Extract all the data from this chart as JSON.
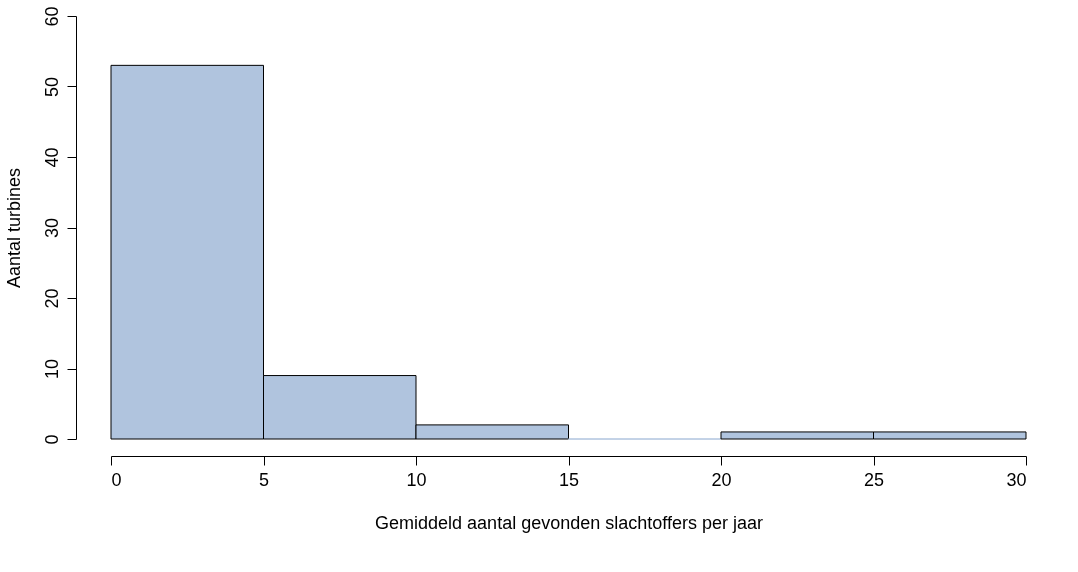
{
  "chart_data": {
    "type": "histogram",
    "xlabel": "Gemiddeld aantal gevonden slachtoffers per jaar",
    "ylabel": "Aantal turbines",
    "bins": [
      0,
      5,
      10,
      15,
      20,
      25,
      30
    ],
    "values": [
      53,
      9,
      2,
      0,
      1,
      1
    ],
    "color": "#b0c4de",
    "xlim": [
      0,
      30
    ],
    "xticks": [
      0,
      5,
      10,
      15,
      20,
      25,
      30
    ],
    "ylim": [
      0,
      60
    ],
    "yticks": [
      0,
      10,
      20,
      30,
      40,
      50,
      60
    ],
    "grid": false
  }
}
